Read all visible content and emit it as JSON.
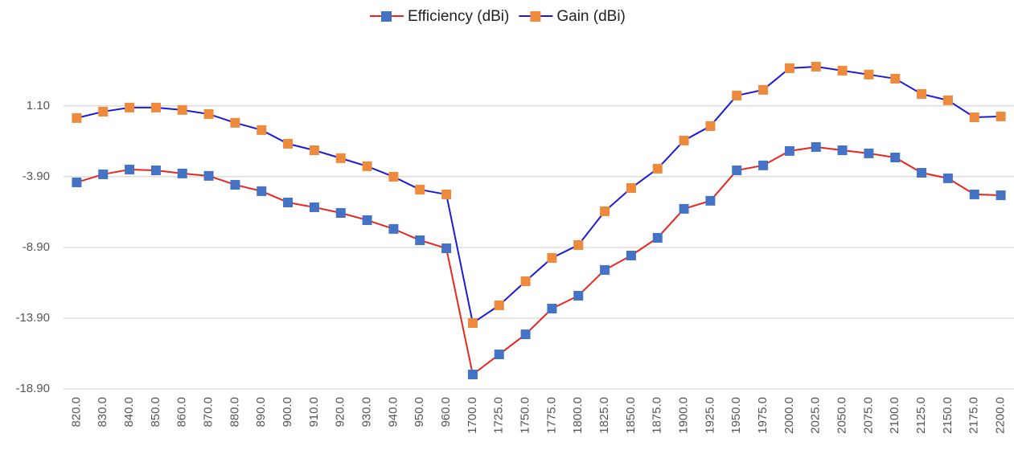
{
  "chart_data": {
    "type": "line",
    "categories": [
      "820.0",
      "830.0",
      "840.0",
      "850.0",
      "860.0",
      "870.0",
      "880.0",
      "890.0",
      "900.0",
      "910.0",
      "920.0",
      "930.0",
      "940.0",
      "950.0",
      "960.0",
      "1700.0",
      "1725.0",
      "1750.0",
      "1775.0",
      "1800.0",
      "1825.0",
      "1850.0",
      "1875.0",
      "1900.0",
      "1925.0",
      "1950.0",
      "1975.0",
      "2000.0",
      "2025.0",
      "2050.0",
      "2075.0",
      "2100.0",
      "2125.0",
      "2150.0",
      "2175.0",
      "2200.0"
    ],
    "series": [
      {
        "name": "Efficiency (dBi)",
        "color": "#e8261e",
        "marker_color": "#4472c4",
        "values": [
          -4.3,
          -3.73,
          -3.39,
          -3.45,
          -3.67,
          -3.84,
          -4.47,
          -4.92,
          -5.72,
          -6.06,
          -6.46,
          -6.97,
          -7.59,
          -8.39,
          -8.96,
          -17.88,
          -16.46,
          -15.04,
          -13.22,
          -12.31,
          -10.49,
          -9.47,
          -8.22,
          -6.17,
          -5.6,
          -3.45,
          -3.1,
          -2.08,
          -1.8,
          -2.03,
          -2.25,
          -2.54,
          -3.62,
          -4.01,
          -5.15,
          -5.21
        ]
      },
      {
        "name": "Gain (dBi)",
        "color": "#1a1adb",
        "marker_color": "#ed8a3c",
        "values": [
          0.25,
          0.7,
          0.99,
          0.99,
          0.82,
          0.53,
          -0.09,
          -0.6,
          -1.57,
          -2.03,
          -2.59,
          -3.16,
          -3.9,
          -4.81,
          -5.15,
          -14.24,
          -12.99,
          -11.29,
          -9.64,
          -8.73,
          -6.34,
          -4.7,
          -3.33,
          -1.34,
          -0.32,
          1.84,
          2.24,
          3.77,
          3.88,
          3.6,
          3.32,
          3.03,
          1.95,
          1.5,
          0.3,
          0.36
        ]
      }
    ],
    "ylim": [
      -18.9,
      4.9
    ],
    "yticks": [
      {
        "value": -18.9,
        "label": "-18.90"
      },
      {
        "value": -13.9,
        "label": "-13.90"
      },
      {
        "value": -8.9,
        "label": "-8.90"
      },
      {
        "value": -3.9,
        "label": "-3.90"
      },
      {
        "value": 1.1,
        "label": "1.10"
      }
    ],
    "grid": true,
    "legend": "top"
  }
}
